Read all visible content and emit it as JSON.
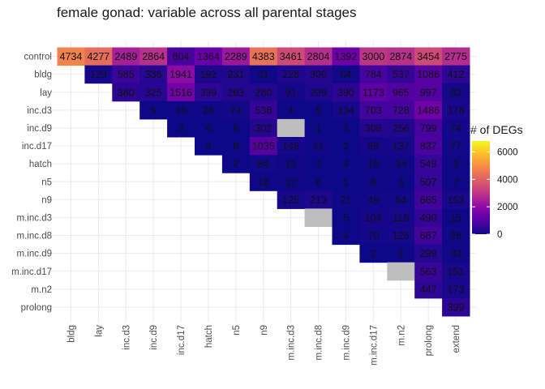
{
  "chart_data": {
    "type": "heatmap",
    "title": "female gonad: variable across all parental stages",
    "legend_title": "# of DEGs",
    "legend_ticks": [
      0,
      2000,
      4000,
      6000
    ],
    "color_limits": [
      0,
      6800
    ],
    "colormap": "plasma",
    "colors": {
      "grid": "#ebebeb",
      "missing": "#bebebe",
      "low": "#0d0887",
      "high": "#f0f921"
    },
    "x_categories": [
      "bldg",
      "lay",
      "inc.d3",
      "inc.d9",
      "inc.d17",
      "hatch",
      "n5",
      "n9",
      "m.inc.d3",
      "m.inc.d8",
      "m.inc.d9",
      "m.inc.d17",
      "m.n2",
      "prolong",
      "extend"
    ],
    "y_categories": [
      "control",
      "bldg",
      "lay",
      "inc.d3",
      "inc.d9",
      "inc.d17",
      "hatch",
      "n5",
      "n9",
      "m.inc.d3",
      "m.inc.d8",
      "m.inc.d9",
      "m.inc.d17",
      "m.n2",
      "prolong"
    ],
    "rows": [
      {
        "label": "control",
        "start": 0,
        "values": [
          4734,
          4277,
          2489,
          2864,
          804,
          1364,
          2289,
          4383,
          3461,
          2804,
          1392,
          3000,
          2874,
          3454,
          2775
        ]
      },
      {
        "label": "bldg",
        "start": 1,
        "values": [
          129,
          585,
          336,
          1941,
          192,
          231,
          31,
          228,
          309,
          64,
          784,
          537,
          1086,
          412
        ]
      },
      {
        "label": "lay",
        "start": 2,
        "values": [
          380,
          325,
          1516,
          399,
          263,
          280,
          91,
          209,
          390,
          1173,
          965,
          997,
          83
        ]
      },
      {
        "label": "inc.d3",
        "start": 3,
        "values": [
          5,
          10,
          26,
          74,
          538,
          4,
          5,
          134,
          703,
          728,
          1486,
          178
        ]
      },
      {
        "label": "inc.d9",
        "start": 4,
        "values": [
          3,
          4,
          6,
          302,
          null,
          1,
          3,
          308,
          256,
          799,
          74
        ]
      },
      {
        "label": "inc.d17",
        "start": 5,
        "values": [
          4,
          6,
          1035,
          148,
          41,
          2,
          89,
          137,
          837,
          77
        ]
      },
      {
        "label": "hatch",
        "start": 6,
        "values": [
          2,
          84,
          10,
          3,
          4,
          16,
          34,
          549,
          9
        ]
      },
      {
        "label": "n5",
        "start": 7,
        "values": [
          18,
          12,
          6,
          1,
          8,
          3,
          507,
          7
        ]
      },
      {
        "label": "n9",
        "start": 8,
        "values": [
          125,
          213,
          21,
          49,
          64,
          665,
          163
        ]
      },
      {
        "label": "m.inc.d3",
        "start": 9,
        "values": [
          null,
          5,
          104,
          118,
          490,
          15
        ]
      },
      {
        "label": "m.inc.d8",
        "start": 10,
        "values": [
          4,
          70,
          126,
          687,
          28
        ]
      },
      {
        "label": "m.inc.d9",
        "start": 11,
        "values": [
          2,
          2,
          299,
          33
        ]
      },
      {
        "label": "m.inc.d17",
        "start": 12,
        "values": [
          null,
          563,
          151
        ]
      },
      {
        "label": "m.n2",
        "start": 13,
        "values": [
          447,
          173
        ]
      },
      {
        "label": "prolong",
        "start": 14,
        "values": [
          399
        ]
      }
    ]
  }
}
